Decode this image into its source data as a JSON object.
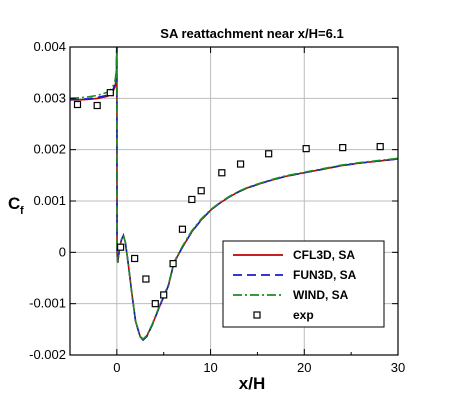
{
  "chart_data": {
    "type": "line",
    "title": "SA reattachment near x/H=6.1",
    "xlabel": "x/H",
    "ylabel_main": "C",
    "ylabel_sub": "f",
    "xlim": [
      -5,
      30
    ],
    "ylim": [
      -0.002,
      0.004
    ],
    "x_ticks": [
      0,
      10,
      20,
      30
    ],
    "x_tick_labels": [
      "0",
      "10",
      "20",
      "30"
    ],
    "y_ticks": [
      -0.002,
      -0.001,
      0,
      0.001,
      0.002,
      0.003,
      0.004
    ],
    "y_tick_labels": [
      "-0.002",
      "-0.001",
      "0",
      "0.001",
      "0.002",
      "0.003",
      "0.004"
    ],
    "grid": true,
    "legend_position": "lower-right",
    "series": [
      {
        "name": "CFL3D, SA",
        "color": "#c00000",
        "dash": "solid",
        "points": [
          [
            -5,
            0.00297
          ],
          [
            -4,
            0.00297
          ],
          [
            -3,
            0.00298
          ],
          [
            -2,
            0.003
          ],
          [
            -1,
            0.00304
          ],
          [
            -0.5,
            0.0031
          ],
          [
            -0.2,
            0.00322
          ],
          [
            -0.05,
            0.0034
          ],
          [
            0.0,
            0.0041
          ],
          [
            0.02,
            0.0
          ],
          [
            0.1,
            -0.0002
          ],
          [
            0.3,
            0.0001
          ],
          [
            0.5,
            0.00025
          ],
          [
            0.7,
            0.00033
          ],
          [
            0.9,
            0.0002
          ],
          [
            1.2,
            -0.0002
          ],
          [
            1.6,
            -0.0008
          ],
          [
            2.0,
            -0.00135
          ],
          [
            2.5,
            -0.00165
          ],
          [
            2.8,
            -0.0017
          ],
          [
            3.2,
            -0.00163
          ],
          [
            3.8,
            -0.0014
          ],
          [
            4.5,
            -0.00108
          ],
          [
            5.5,
            -0.00065
          ],
          [
            6.1,
            -0.0002
          ],
          [
            7,
            0.0001
          ],
          [
            8,
            0.0004
          ],
          [
            9,
            0.00063
          ],
          [
            10,
            0.00082
          ],
          [
            11,
            0.00096
          ],
          [
            12,
            0.00108
          ],
          [
            13,
            0.00118
          ],
          [
            14,
            0.00126
          ],
          [
            16,
            0.00138
          ],
          [
            18,
            0.00148
          ],
          [
            20,
            0.00155
          ],
          [
            22,
            0.00162
          ],
          [
            24,
            0.00169
          ],
          [
            26,
            0.00174
          ],
          [
            28,
            0.00178
          ],
          [
            30,
            0.00182
          ]
        ]
      },
      {
        "name": "FUN3D, SA",
        "color": "#1a1acc",
        "dash": "dashed",
        "points": [
          [
            -5,
            0.00297
          ],
          [
            -4,
            0.00298
          ],
          [
            -3,
            0.00299
          ],
          [
            -2,
            0.00302
          ],
          [
            -1,
            0.00306
          ],
          [
            -0.5,
            0.00314
          ],
          [
            -0.2,
            0.00326
          ],
          [
            -0.05,
            0.00345
          ],
          [
            0.0,
            0.0041
          ],
          [
            0.02,
            0.0
          ],
          [
            0.1,
            -0.0002
          ],
          [
            0.3,
            0.0001
          ],
          [
            0.5,
            0.00025
          ],
          [
            0.7,
            0.00033
          ],
          [
            0.9,
            0.0002
          ],
          [
            1.2,
            -0.0002
          ],
          [
            1.6,
            -0.0008
          ],
          [
            2.0,
            -0.00135
          ],
          [
            2.5,
            -0.00165
          ],
          [
            2.8,
            -0.00171
          ],
          [
            3.2,
            -0.00164
          ],
          [
            3.8,
            -0.00141
          ],
          [
            4.5,
            -0.00108
          ],
          [
            5.5,
            -0.00065
          ],
          [
            6.1,
            -0.0002
          ],
          [
            7,
            0.0001
          ],
          [
            8,
            0.0004
          ],
          [
            9,
            0.00063
          ],
          [
            10,
            0.00082
          ],
          [
            11,
            0.00096
          ],
          [
            12,
            0.00108
          ],
          [
            13,
            0.00118
          ],
          [
            14,
            0.00126
          ],
          [
            16,
            0.00138
          ],
          [
            18,
            0.00148
          ],
          [
            20,
            0.00155
          ],
          [
            22,
            0.00162
          ],
          [
            24,
            0.00169
          ],
          [
            26,
            0.00174
          ],
          [
            28,
            0.00178
          ],
          [
            30,
            0.00182
          ]
        ]
      },
      {
        "name": "WIND, SA",
        "color": "#1c8c1c",
        "dash": "dashdot",
        "points": [
          [
            -5,
            0.003
          ],
          [
            -4,
            0.00301
          ],
          [
            -3,
            0.00303
          ],
          [
            -2,
            0.00306
          ],
          [
            -1,
            0.00312
          ],
          [
            -0.5,
            0.0032
          ],
          [
            -0.2,
            0.00333
          ],
          [
            -0.05,
            0.00355
          ],
          [
            0.0,
            0.0041
          ],
          [
            0.02,
            0.0
          ],
          [
            0.1,
            -0.0002
          ],
          [
            0.3,
            0.0001
          ],
          [
            0.5,
            0.00025
          ],
          [
            0.7,
            0.00033
          ],
          [
            0.9,
            0.0002
          ],
          [
            1.2,
            -0.0002
          ],
          [
            1.6,
            -0.0008
          ],
          [
            2.0,
            -0.00134
          ],
          [
            2.5,
            -0.00164
          ],
          [
            2.8,
            -0.00169
          ],
          [
            3.2,
            -0.00162
          ],
          [
            3.8,
            -0.00139
          ],
          [
            4.5,
            -0.00106
          ],
          [
            5.5,
            -0.00063
          ],
          [
            6.1,
            -0.00019
          ],
          [
            7,
            0.00012
          ],
          [
            8,
            0.00042
          ],
          [
            9,
            0.00065
          ],
          [
            10,
            0.00083
          ],
          [
            11,
            0.00097
          ],
          [
            12,
            0.00109
          ],
          [
            13,
            0.00119
          ],
          [
            14,
            0.00127
          ],
          [
            16,
            0.00139
          ],
          [
            18,
            0.00149
          ],
          [
            20,
            0.00156
          ],
          [
            22,
            0.00163
          ],
          [
            24,
            0.0017
          ],
          [
            26,
            0.00175
          ],
          [
            28,
            0.00179
          ],
          [
            30,
            0.00183
          ]
        ]
      },
      {
        "name": "exp",
        "color": "#000000",
        "marker": "square",
        "points": [
          [
            -4.2,
            0.00288
          ],
          [
            -2.1,
            0.00286
          ],
          [
            -0.7,
            0.00311
          ],
          [
            0.4,
            0.0001
          ],
          [
            1.9,
            -0.00012
          ],
          [
            3.1,
            -0.00052
          ],
          [
            4.1,
            -0.001
          ],
          [
            5.0,
            -0.00083
          ],
          [
            6.0,
            -0.00022
          ],
          [
            7.0,
            0.00045
          ],
          [
            8.0,
            0.00103
          ],
          [
            9.0,
            0.0012
          ],
          [
            11.2,
            0.00155
          ],
          [
            13.2,
            0.00172
          ],
          [
            16.2,
            0.00192
          ],
          [
            20.2,
            0.00202
          ],
          [
            24.1,
            0.00204
          ],
          [
            28.1,
            0.00206
          ]
        ]
      }
    ]
  }
}
